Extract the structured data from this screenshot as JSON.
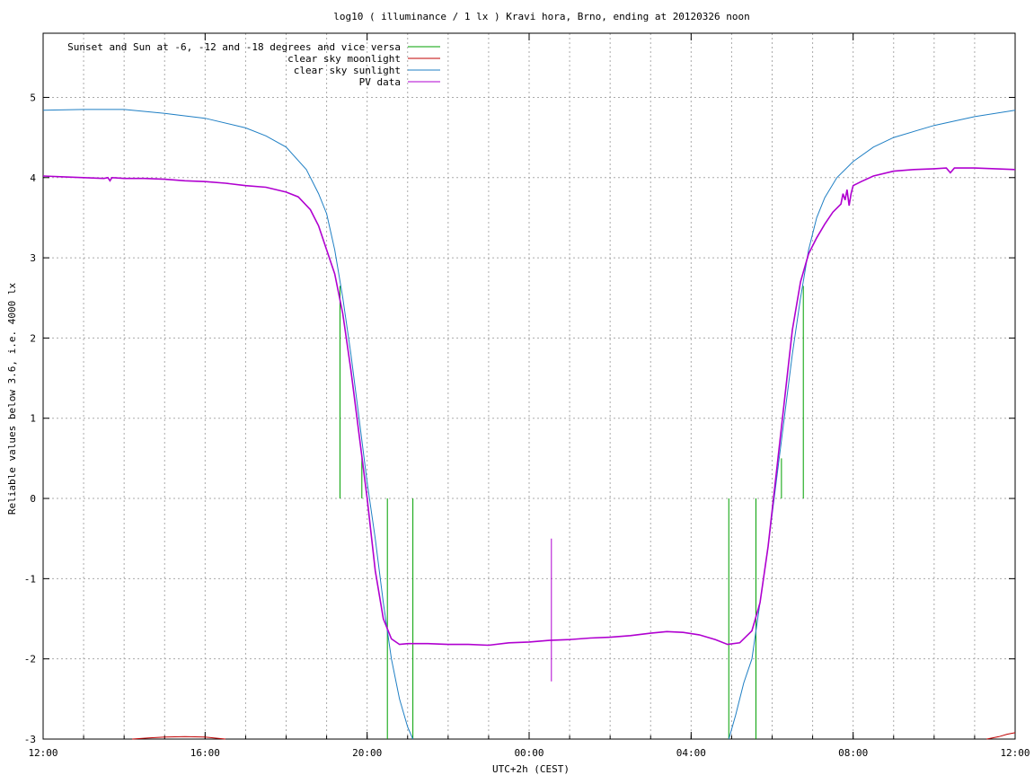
{
  "chart_data": {
    "type": "line",
    "title": "log10 ( illuminance / 1 lx ) Kravi hora, Brno, ending at 20120326 noon",
    "xlabel": "UTC+2h (CEST)",
    "ylabel": "Reliable values below 3.6, i.e. 4000 lx",
    "x_unit": "hours since 12:00 (start of window)",
    "xlim": [
      0,
      24
    ],
    "ylim": [
      -3,
      5.8
    ],
    "grid": true,
    "legend_position": "top-left",
    "x_ticks": [
      {
        "x": 0,
        "label": "12:00"
      },
      {
        "x": 4,
        "label": "16:00"
      },
      {
        "x": 8,
        "label": "20:00"
      },
      {
        "x": 12,
        "label": "00:00"
      },
      {
        "x": 16,
        "label": "04:00"
      },
      {
        "x": 20,
        "label": "08:00"
      },
      {
        "x": 24,
        "label": "12:00"
      }
    ],
    "y_ticks": [
      {
        "y": 5,
        "label": "5"
      },
      {
        "y": 4,
        "label": "4"
      },
      {
        "y": 3,
        "label": "3"
      },
      {
        "y": 2,
        "label": "2"
      },
      {
        "y": 1,
        "label": "1"
      },
      {
        "y": 0,
        "label": "0"
      },
      {
        "y": -1,
        "label": "-1"
      },
      {
        "y": -2,
        "label": "-2"
      },
      {
        "y": -3,
        "label": "-3"
      }
    ],
    "series": [
      {
        "name": "Sunset and Sun at -6, -12 and -18 degrees and vice versa",
        "color": "#00a000",
        "kind": "vertical_markers",
        "markers": [
          {
            "x": 7.33,
            "y_from": 0,
            "y_to": 2.65
          },
          {
            "x": 7.87,
            "y_from": 0,
            "y_to": 0.5
          },
          {
            "x": 8.5,
            "y_from": -3,
            "y_to": 0
          },
          {
            "x": 9.13,
            "y_from": -3,
            "y_to": 0
          },
          {
            "x": 16.93,
            "y_from": -3,
            "y_to": 0
          },
          {
            "x": 17.6,
            "y_from": -3,
            "y_to": 0
          },
          {
            "x": 18.23,
            "y_from": 0,
            "y_to": 0.5
          },
          {
            "x": 18.77,
            "y_from": 0,
            "y_to": 2.65
          }
        ]
      },
      {
        "name": "clear sky moonlight",
        "color": "#c00000",
        "points": [
          [
            2.2,
            -3.0
          ],
          [
            2.6,
            -2.985
          ],
          [
            3.0,
            -2.975
          ],
          [
            3.5,
            -2.97
          ],
          [
            4.0,
            -2.975
          ],
          [
            4.3,
            -2.99
          ],
          [
            4.5,
            -3.0
          ],
          [
            23.3,
            -3.0
          ],
          [
            23.6,
            -2.97
          ],
          [
            23.8,
            -2.94
          ],
          [
            24.0,
            -2.92
          ]
        ]
      },
      {
        "name": "clear sky sunlight",
        "color": "#1f7fc4",
        "points": [
          [
            0.0,
            4.84
          ],
          [
            1.0,
            4.85
          ],
          [
            2.0,
            4.85
          ],
          [
            3.0,
            4.8
          ],
          [
            4.0,
            4.74
          ],
          [
            5.0,
            4.62
          ],
          [
            5.5,
            4.52
          ],
          [
            6.0,
            4.38
          ],
          [
            6.5,
            4.1
          ],
          [
            6.8,
            3.8
          ],
          [
            7.0,
            3.55
          ],
          [
            7.2,
            3.1
          ],
          [
            7.4,
            2.5
          ],
          [
            7.6,
            1.8
          ],
          [
            7.8,
            1.0
          ],
          [
            8.0,
            0.2
          ],
          [
            8.2,
            -0.5
          ],
          [
            8.4,
            -1.3
          ],
          [
            8.6,
            -2.0
          ],
          [
            8.8,
            -2.5
          ],
          [
            9.0,
            -2.85
          ],
          [
            9.13,
            -3.0
          ],
          [
            16.93,
            -3.0
          ],
          [
            17.1,
            -2.7
          ],
          [
            17.3,
            -2.3
          ],
          [
            17.5,
            -2.0
          ],
          [
            17.7,
            -1.3
          ],
          [
            17.9,
            -0.6
          ],
          [
            18.1,
            0.2
          ],
          [
            18.3,
            1.0
          ],
          [
            18.5,
            1.8
          ],
          [
            18.7,
            2.5
          ],
          [
            18.9,
            3.1
          ],
          [
            19.1,
            3.5
          ],
          [
            19.3,
            3.75
          ],
          [
            19.6,
            4.0
          ],
          [
            20.0,
            4.2
          ],
          [
            20.5,
            4.38
          ],
          [
            21.0,
            4.5
          ],
          [
            22.0,
            4.65
          ],
          [
            23.0,
            4.76
          ],
          [
            24.0,
            4.84
          ]
        ]
      },
      {
        "name": "PV data",
        "color": "#b000d0",
        "points": [
          [
            0.0,
            4.02
          ],
          [
            0.5,
            4.01
          ],
          [
            1.0,
            4.0
          ],
          [
            1.5,
            3.99
          ],
          [
            1.6,
            4.0
          ],
          [
            1.65,
            3.96
          ],
          [
            1.7,
            4.0
          ],
          [
            2.0,
            3.99
          ],
          [
            2.5,
            3.99
          ],
          [
            3.0,
            3.98
          ],
          [
            3.5,
            3.96
          ],
          [
            4.0,
            3.95
          ],
          [
            4.5,
            3.93
          ],
          [
            5.0,
            3.9
          ],
          [
            5.5,
            3.88
          ],
          [
            6.0,
            3.82
          ],
          [
            6.3,
            3.76
          ],
          [
            6.6,
            3.6
          ],
          [
            6.8,
            3.4
          ],
          [
            7.0,
            3.1
          ],
          [
            7.2,
            2.8
          ],
          [
            7.4,
            2.3
          ],
          [
            7.6,
            1.6
          ],
          [
            7.8,
            0.8
          ],
          [
            8.0,
            0.0
          ],
          [
            8.2,
            -0.9
          ],
          [
            8.4,
            -1.5
          ],
          [
            8.6,
            -1.75
          ],
          [
            8.8,
            -1.82
          ],
          [
            9.0,
            -1.81
          ],
          [
            9.5,
            -1.81
          ],
          [
            10.0,
            -1.82
          ],
          [
            10.5,
            -1.82
          ],
          [
            11.0,
            -1.83
          ],
          [
            11.5,
            -1.8
          ],
          [
            12.0,
            -1.79
          ],
          [
            12.5,
            -1.77
          ],
          [
            13.0,
            -1.76
          ],
          [
            13.5,
            -1.74
          ],
          [
            14.0,
            -1.73
          ],
          [
            14.5,
            -1.71
          ],
          [
            15.0,
            -1.68
          ],
          [
            15.4,
            -1.66
          ],
          [
            15.8,
            -1.67
          ],
          [
            16.2,
            -1.7
          ],
          [
            16.6,
            -1.76
          ],
          [
            16.9,
            -1.82
          ],
          [
            17.2,
            -1.8
          ],
          [
            17.5,
            -1.65
          ],
          [
            17.7,
            -1.3
          ],
          [
            17.9,
            -0.6
          ],
          [
            18.1,
            0.3
          ],
          [
            18.3,
            1.2
          ],
          [
            18.5,
            2.1
          ],
          [
            18.7,
            2.7
          ],
          [
            18.9,
            3.05
          ],
          [
            19.1,
            3.25
          ],
          [
            19.3,
            3.42
          ],
          [
            19.5,
            3.57
          ],
          [
            19.7,
            3.67
          ],
          [
            19.75,
            3.8
          ],
          [
            19.8,
            3.72
          ],
          [
            19.85,
            3.85
          ],
          [
            19.9,
            3.65
          ],
          [
            19.95,
            3.8
          ],
          [
            20.0,
            3.9
          ],
          [
            20.2,
            3.95
          ],
          [
            20.5,
            4.02
          ],
          [
            21.0,
            4.08
          ],
          [
            21.5,
            4.1
          ],
          [
            22.0,
            4.11
          ],
          [
            22.3,
            4.12
          ],
          [
            22.4,
            4.06
          ],
          [
            22.5,
            4.12
          ],
          [
            23.0,
            4.12
          ],
          [
            23.5,
            4.11
          ],
          [
            24.0,
            4.1
          ]
        ],
        "extra_segments": [
          {
            "x": 12.55,
            "y_from": -2.28,
            "y_to": -0.5
          }
        ]
      }
    ]
  }
}
